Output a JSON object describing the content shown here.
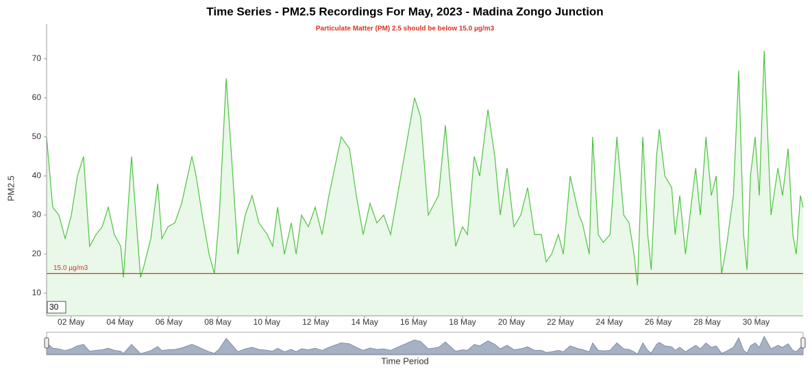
{
  "chart_data": {
    "type": "line",
    "title": "Time Series - PM2.5 Recordings For May, 2023 - Madina Zongo Junction",
    "subtitle": "Particulate Matter (PM) 2.5 should be below 15.0 µg/m3",
    "x_label": "Time Period",
    "y_label": "PM2.5",
    "roll_period": 30,
    "threshold": {
      "value": 15,
      "label": "15.0 µg/m3",
      "color": "#e0301e"
    },
    "xlim": [
      1,
      31.92
    ],
    "ylim": [
      4.2,
      78.9
    ],
    "xticks": [
      {
        "value": 2,
        "label": "02 May"
      },
      {
        "value": 4,
        "label": "04 May"
      },
      {
        "value": 6,
        "label": "06 May"
      },
      {
        "value": 8,
        "label": "08 May"
      },
      {
        "value": 10,
        "label": "10 May"
      },
      {
        "value": 12,
        "label": "12 May"
      },
      {
        "value": 14,
        "label": "14 May"
      },
      {
        "value": 16,
        "label": "16 May"
      },
      {
        "value": 18,
        "label": "18 May"
      },
      {
        "value": 20,
        "label": "20 May"
      },
      {
        "value": 22,
        "label": "22 May"
      },
      {
        "value": 24,
        "label": "24 May"
      },
      {
        "value": 26,
        "label": "26 May"
      },
      {
        "value": 28,
        "label": "28 May"
      },
      {
        "value": 30,
        "label": "30 May"
      }
    ],
    "yticks": [
      10,
      20,
      30,
      40,
      50,
      60,
      70
    ],
    "grid": false,
    "series": [
      {
        "name": "PM2.5",
        "color": "#4cc23f",
        "x": [
          1.0,
          1.25,
          1.5,
          1.76,
          2.01,
          2.26,
          2.51,
          2.76,
          3.02,
          3.27,
          3.52,
          3.77,
          4.03,
          4.14,
          4.47,
          4.84,
          4.98,
          5.26,
          5.54,
          5.71,
          5.96,
          6.24,
          6.52,
          6.94,
          7.11,
          7.36,
          7.64,
          7.86,
          8.06,
          8.34,
          8.56,
          8.82,
          9.12,
          9.4,
          9.68,
          10.02,
          10.24,
          10.44,
          10.72,
          11.0,
          11.2,
          11.42,
          11.7,
          11.98,
          12.26,
          12.54,
          13.04,
          13.38,
          13.66,
          13.94,
          14.22,
          14.5,
          14.78,
          15.06,
          15.34,
          15.76,
          16.04,
          16.29,
          16.6,
          17.02,
          17.3,
          17.47,
          17.72,
          18.0,
          18.2,
          18.48,
          18.7,
          19.04,
          19.32,
          19.54,
          19.82,
          20.1,
          20.38,
          20.66,
          20.94,
          21.22,
          21.42,
          21.64,
          21.92,
          22.12,
          22.4,
          22.76,
          22.9,
          23.18,
          23.32,
          23.55,
          23.75,
          24.03,
          24.31,
          24.59,
          24.81,
          25.01,
          25.15,
          25.37,
          25.57,
          25.71,
          25.93,
          26.04,
          26.27,
          26.55,
          26.69,
          26.88,
          27.11,
          27.39,
          27.53,
          27.72,
          27.95,
          28.17,
          28.37,
          28.59,
          28.79,
          29.07,
          29.29,
          29.49,
          29.63,
          29.77,
          29.96,
          30.13,
          30.33,
          30.61,
          30.89,
          31.08,
          31.31,
          31.5,
          31.64,
          31.81,
          31.92
        ],
        "values": [
          50,
          32,
          30,
          24,
          30,
          40,
          45,
          22,
          25,
          27,
          32,
          25,
          22,
          14,
          45,
          14,
          17,
          24,
          38,
          24,
          27,
          28,
          33,
          45,
          40,
          30,
          20,
          15,
          30,
          65,
          45,
          20,
          30,
          35,
          28,
          25,
          22,
          32,
          20,
          28,
          20,
          30,
          27,
          32,
          25,
          35,
          50,
          47,
          35,
          25,
          33,
          28,
          30,
          25,
          35,
          50,
          60,
          55,
          30,
          35,
          53,
          40,
          22,
          27,
          25,
          45,
          40,
          57,
          45,
          30,
          42,
          27,
          30,
          37,
          25,
          25,
          18,
          20,
          25,
          20,
          40,
          30,
          28,
          20,
          50,
          25,
          23,
          25,
          50,
          30,
          28,
          20,
          12,
          50,
          25,
          16,
          45,
          52,
          40,
          37,
          25,
          35,
          20,
          35,
          42,
          30,
          50,
          35,
          40,
          15,
          22,
          35,
          67,
          25,
          16,
          40,
          50,
          35,
          72,
          30,
          42,
          35,
          47,
          25,
          20,
          35,
          32
        ]
      }
    ]
  }
}
